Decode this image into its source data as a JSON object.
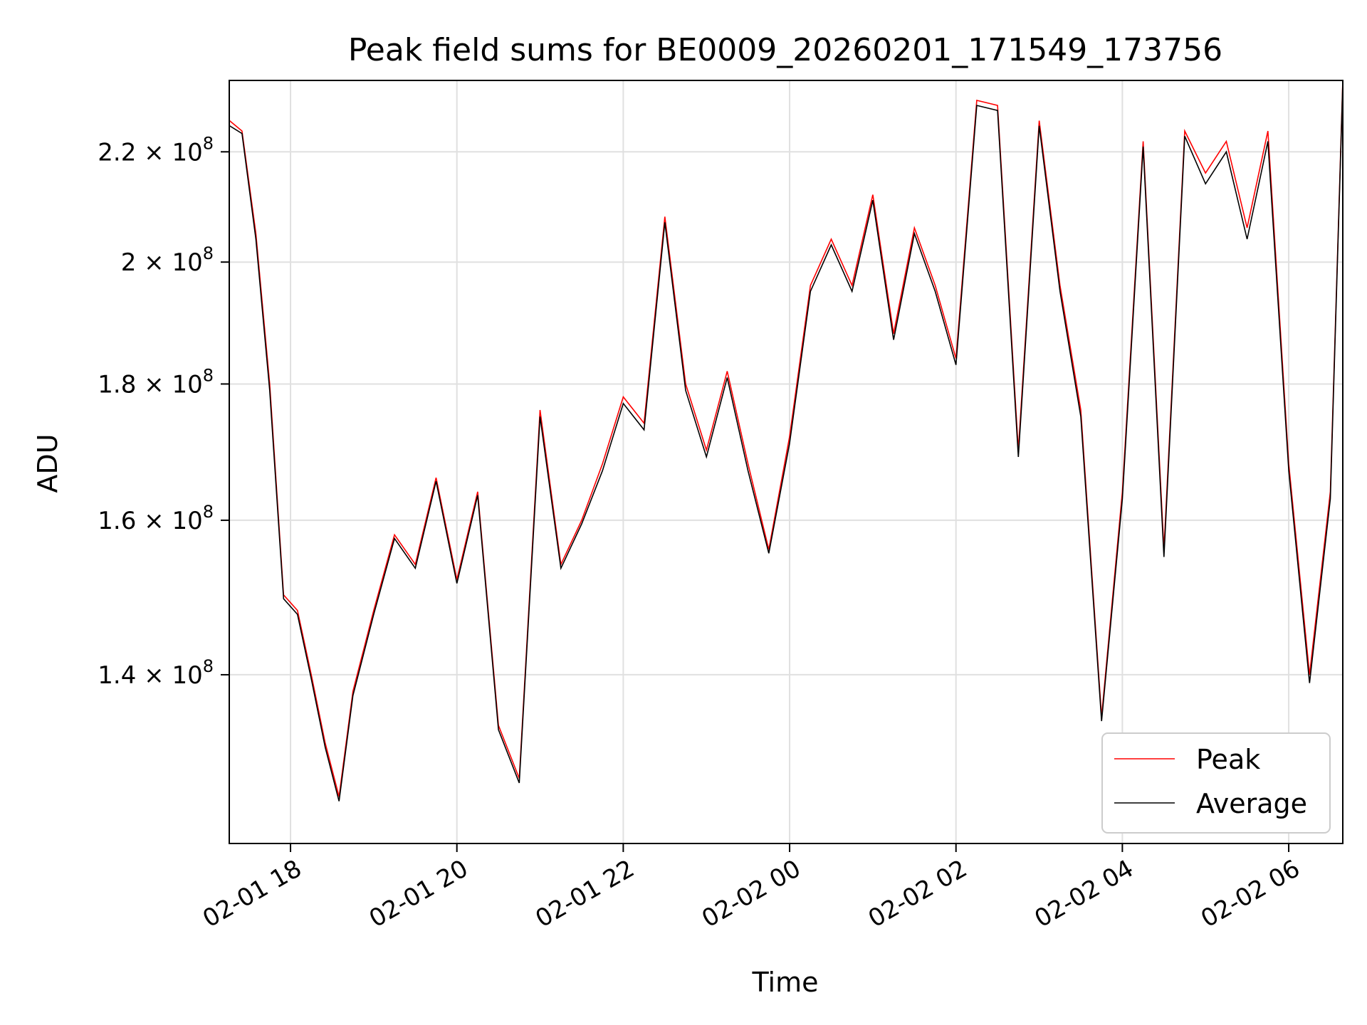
{
  "chart_data": {
    "type": "line",
    "title": "Peak field sums for BE0009_20260201_171549_173756",
    "xlabel": "Time",
    "ylabel": "ADU",
    "y_scale": "log",
    "ylim": [
      121000000,
      234000000
    ],
    "x_range": [
      "02-01 17:15:49",
      "02-02 06:39:00"
    ],
    "x_ticks": [
      "02-01 18",
      "02-01 20",
      "02-01 22",
      "02-02 00",
      "02-02 02",
      "02-02 04",
      "02-02 06"
    ],
    "y_ticks": [
      {
        "value": 140000000,
        "mantissa": "1.4",
        "exponent": "8"
      },
      {
        "value": 160000000,
        "mantissa": "1.6",
        "exponent": "8"
      },
      {
        "value": 180000000,
        "mantissa": "1.8",
        "exponent": "8"
      },
      {
        "value": 200000000,
        "mantissa": "2",
        "exponent": "8"
      },
      {
        "value": 220000000,
        "mantissa": "2.2",
        "exponent": "8"
      }
    ],
    "grid": true,
    "legend_position": "bottom-right",
    "series": [
      {
        "name": "Peak",
        "color": "#ff0000"
      },
      {
        "name": "Average",
        "color": "#000000"
      }
    ],
    "x": [
      "02-01 17:16",
      "02-01 17:25",
      "02-01 17:35",
      "02-01 17:45",
      "02-01 17:55",
      "02-01 18:05",
      "02-01 18:15",
      "02-01 18:25",
      "02-01 18:35",
      "02-01 18:45",
      "02-01 19:00",
      "02-01 19:15",
      "02-01 19:30",
      "02-01 19:45",
      "02-01 20:00",
      "02-01 20:15",
      "02-01 20:30",
      "02-01 20:45",
      "02-01 21:00",
      "02-01 21:15",
      "02-01 21:30",
      "02-01 21:45",
      "02-01 22:00",
      "02-01 22:15",
      "02-01 22:30",
      "02-01 22:45",
      "02-01 23:00",
      "02-01 23:15",
      "02-01 23:30",
      "02-01 23:45",
      "02-02 00:00",
      "02-02 00:15",
      "02-02 00:30",
      "02-02 00:45",
      "02-02 01:00",
      "02-02 01:15",
      "02-02 01:30",
      "02-02 01:45",
      "02-02 02:00",
      "02-02 02:15",
      "02-02 02:30",
      "02-02 02:45",
      "02-02 03:00",
      "02-02 03:15",
      "02-02 03:30",
      "02-02 03:45",
      "02-02 04:00",
      "02-02 04:15",
      "02-02 04:30",
      "02-02 04:45",
      "02-02 05:00",
      "02-02 05:15",
      "02-02 05:30",
      "02-02 05:45",
      "02-02 06:00",
      "02-02 06:15",
      "02-02 06:30",
      "02-02 06:39"
    ],
    "values": {
      "Peak": [
        226000000,
        224000000,
        205000000,
        180000000,
        150000000,
        148000000,
        140000000,
        132000000,
        126000000,
        138000000,
        148000000,
        158000000,
        154000000,
        166000000,
        152000000,
        164000000,
        134000000,
        128000000,
        176000000,
        154000000,
        160000000,
        168000000,
        178000000,
        174000000,
        208000000,
        180000000,
        170000000,
        182000000,
        168000000,
        156000000,
        172000000,
        196000000,
        204000000,
        196000000,
        212000000,
        188000000,
        206000000,
        196000000,
        184000000,
        230000000,
        229000000,
        170000000,
        226000000,
        196000000,
        176000000,
        135000000,
        164000000,
        222000000,
        156000000,
        224000000,
        216000000,
        222000000,
        206000000,
        224000000,
        168000000,
        140000000,
        164000000,
        234000000
      ],
      "Average": [
        225000000,
        223500000,
        204000000,
        179000000,
        149500000,
        147500000,
        139500000,
        131500000,
        125500000,
        137500000,
        147500000,
        157500000,
        153500000,
        165500000,
        151500000,
        163500000,
        133500000,
        127500000,
        175000000,
        153500000,
        159500000,
        167000000,
        177000000,
        173000000,
        207000000,
        179000000,
        169000000,
        181000000,
        167000000,
        155500000,
        171000000,
        195000000,
        203000000,
        195000000,
        211000000,
        187000000,
        205000000,
        195000000,
        183000000,
        229000000,
        228000000,
        169000000,
        225000000,
        195000000,
        175000000,
        134500000,
        163000000,
        221000000,
        155000000,
        223000000,
        214000000,
        220000000,
        204000000,
        222000000,
        167000000,
        139000000,
        163000000,
        233500000
      ]
    }
  }
}
